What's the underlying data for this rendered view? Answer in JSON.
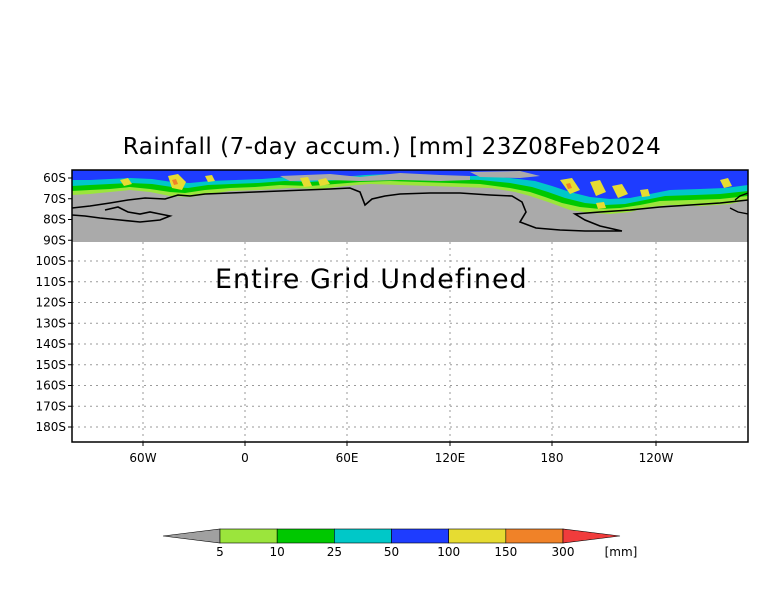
{
  "title": "Rainfall (7-day accum.) [mm] 23Z08Feb2024",
  "undefined_message": "Entire Grid Undefined",
  "y_axis_labels": [
    "60S",
    "70S",
    "80S",
    "90S",
    "100S",
    "110S",
    "120S",
    "130S",
    "140S",
    "150S",
    "160S",
    "170S",
    "180S"
  ],
  "x_axis_labels": [
    "60W",
    "0",
    "60E",
    "120E",
    "180",
    "120W"
  ],
  "colorbar": {
    "colors": [
      "#a0a0a0",
      "#9be53c",
      "#00c800",
      "#00c8c8",
      "#1e3cff",
      "#e6dc32",
      "#f08228",
      "#f03c3c"
    ],
    "labels": [
      "5",
      "10",
      "25",
      "50",
      "100",
      "150",
      "300"
    ],
    "unit": "[mm]"
  },
  "colors": {
    "land_undefined": "#aaaaaa",
    "frame": "#000000"
  }
}
